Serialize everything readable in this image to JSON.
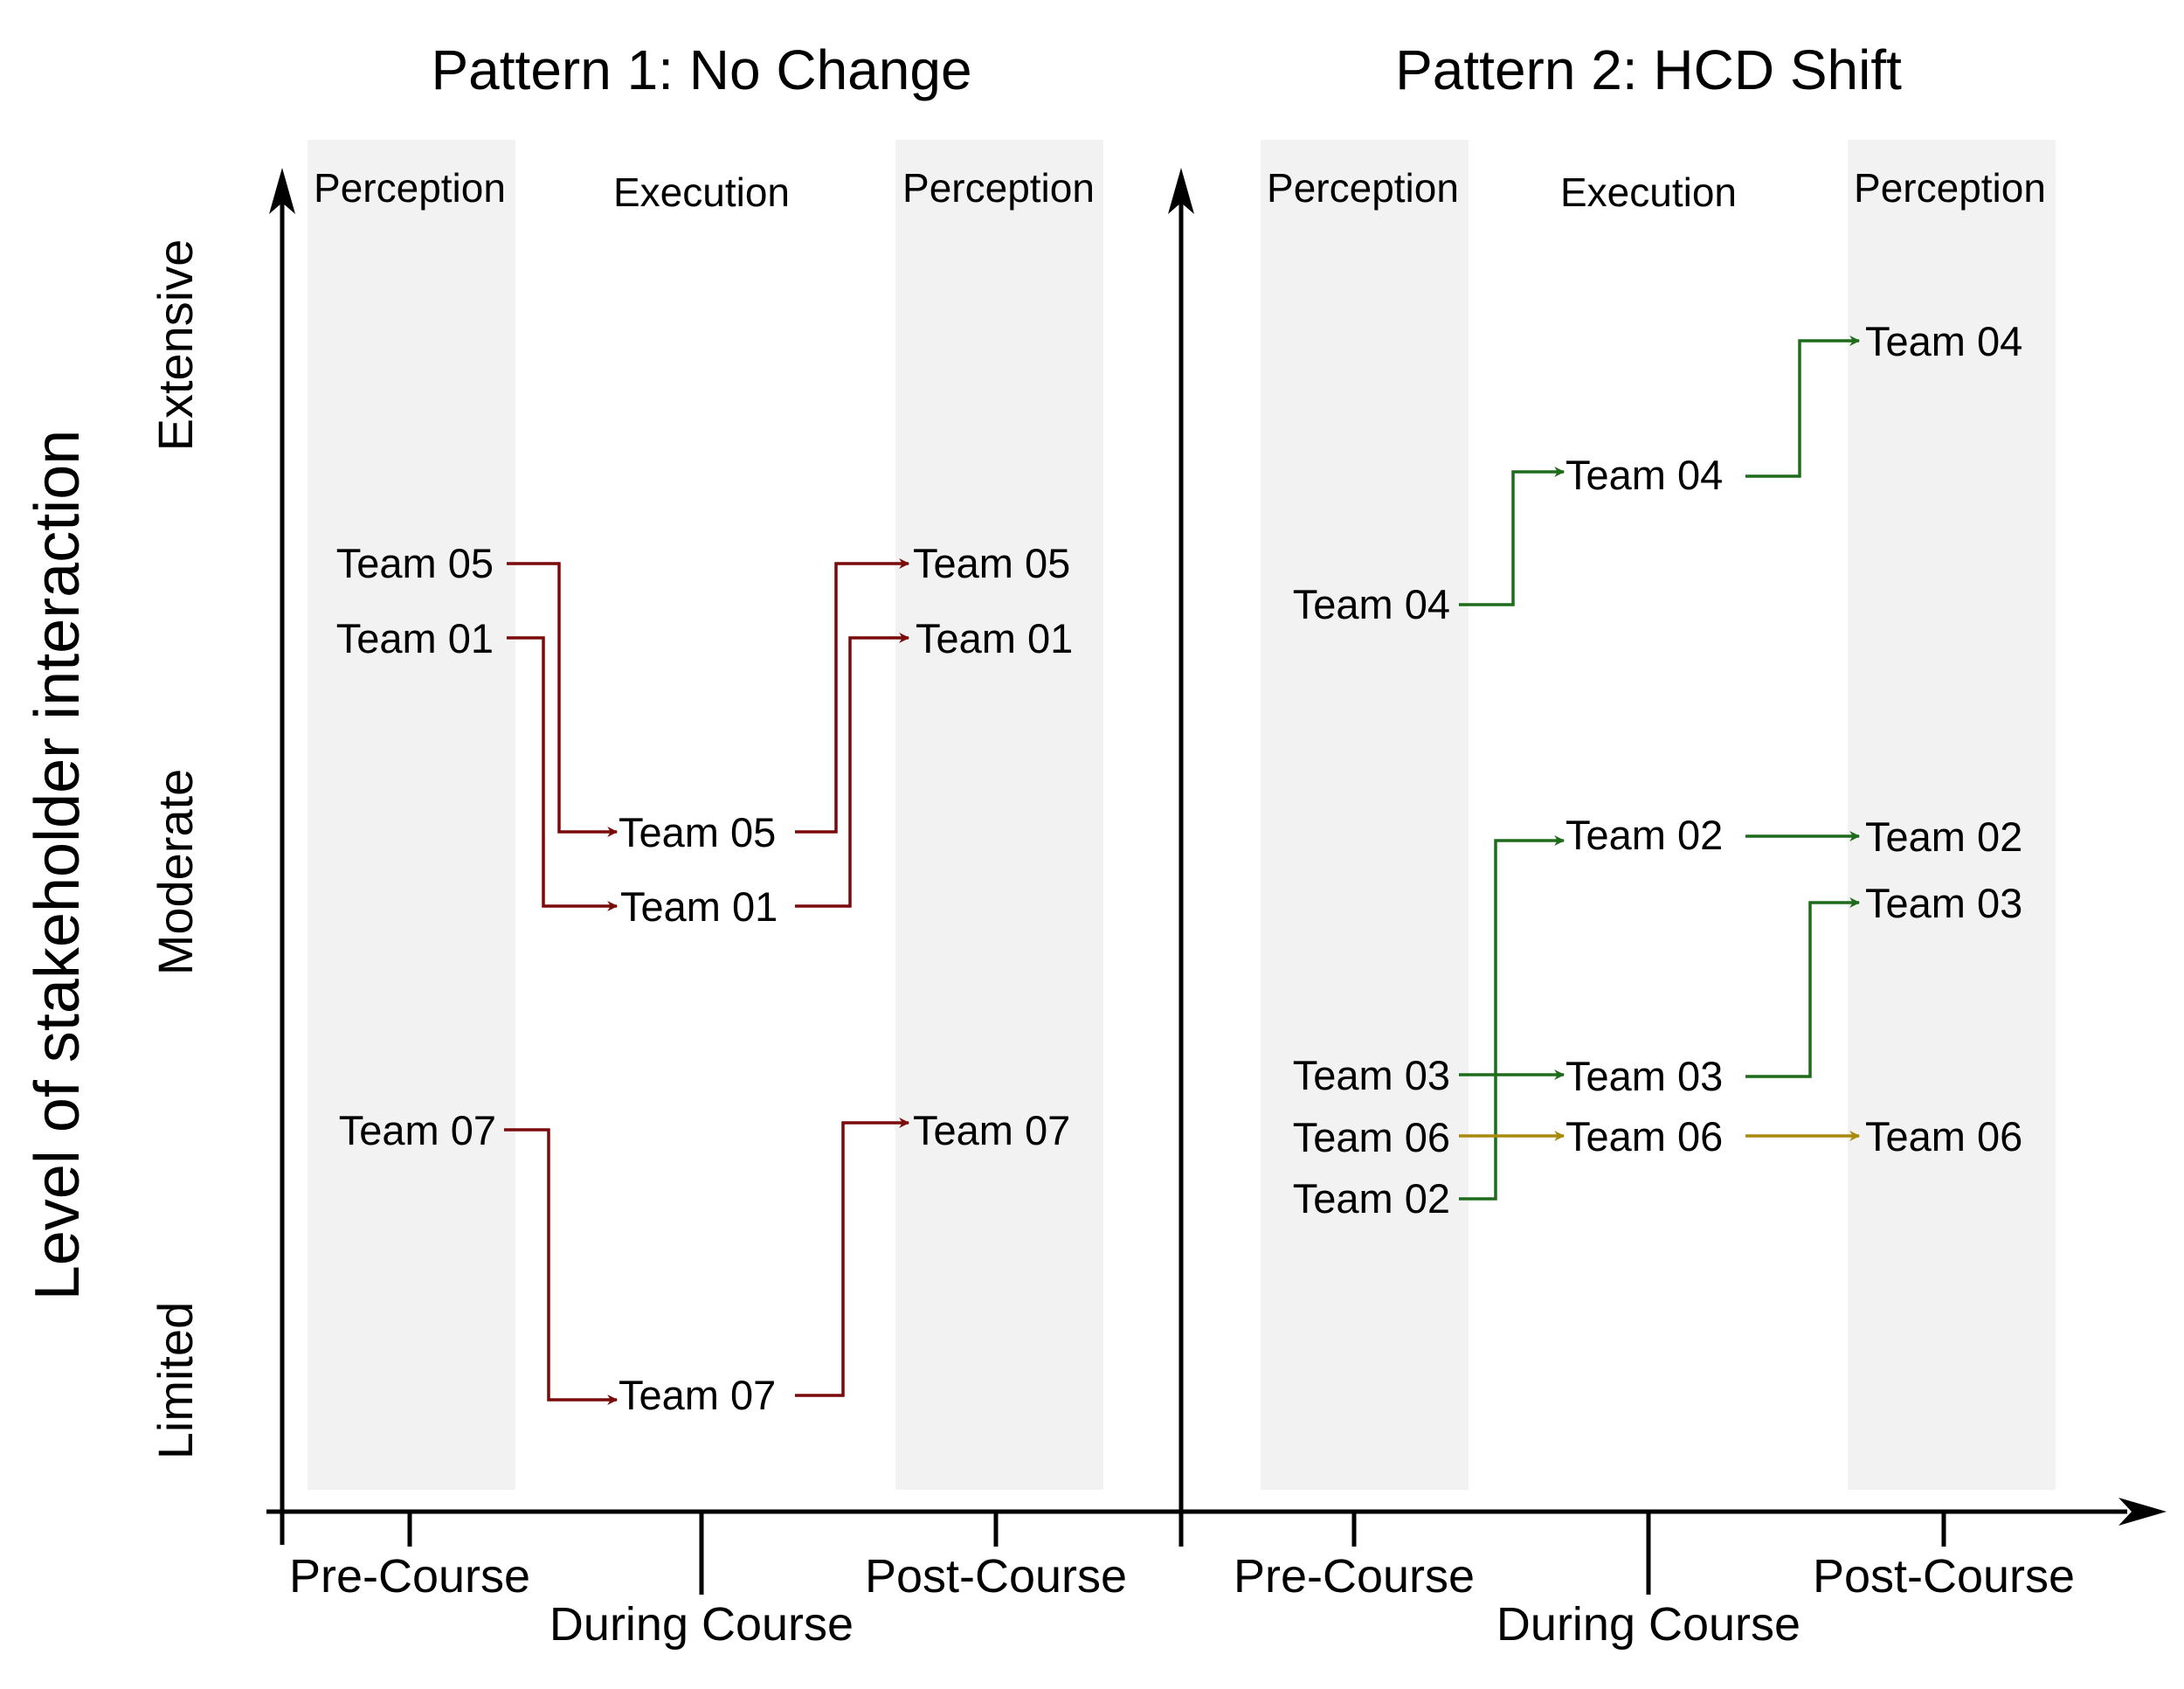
{
  "y_axis_label": "Level of stakeholder interaction",
  "levels": [
    "Extensive",
    "Moderate",
    "Limited"
  ],
  "x_ticks": {
    "pre": "Pre-Course",
    "during": "During Course",
    "post": "Post-Course"
  },
  "colors": {
    "pattern1": "#7b0a0a",
    "pattern2_shift": "#1f6b1c",
    "pattern2_flat": "#a88a0c"
  },
  "panels": [
    {
      "title": "Pattern 1: No Change",
      "phases": {
        "pre": "Perception",
        "during": "Execution",
        "post": "Perception"
      },
      "pre_teams": [
        "Team 05",
        "Team 01",
        "Team 07"
      ],
      "during_teams": [
        "Team 05",
        "Team 01",
        "Team 07"
      ],
      "post_teams": [
        "Team 05",
        "Team 01",
        "Team 07"
      ]
    },
    {
      "title": "Pattern 2: HCD Shift",
      "phases": {
        "pre": "Perception",
        "during": "Execution",
        "post": "Perception"
      },
      "pre_teams": [
        "Team 04",
        "Team 03",
        "Team 06",
        "Team 02"
      ],
      "during_teams": [
        "Team 04",
        "Team 02",
        "Team 03",
        "Team 06"
      ],
      "post_teams": [
        "Team 04",
        "Team 02",
        "Team 03",
        "Team 06"
      ]
    }
  ]
}
